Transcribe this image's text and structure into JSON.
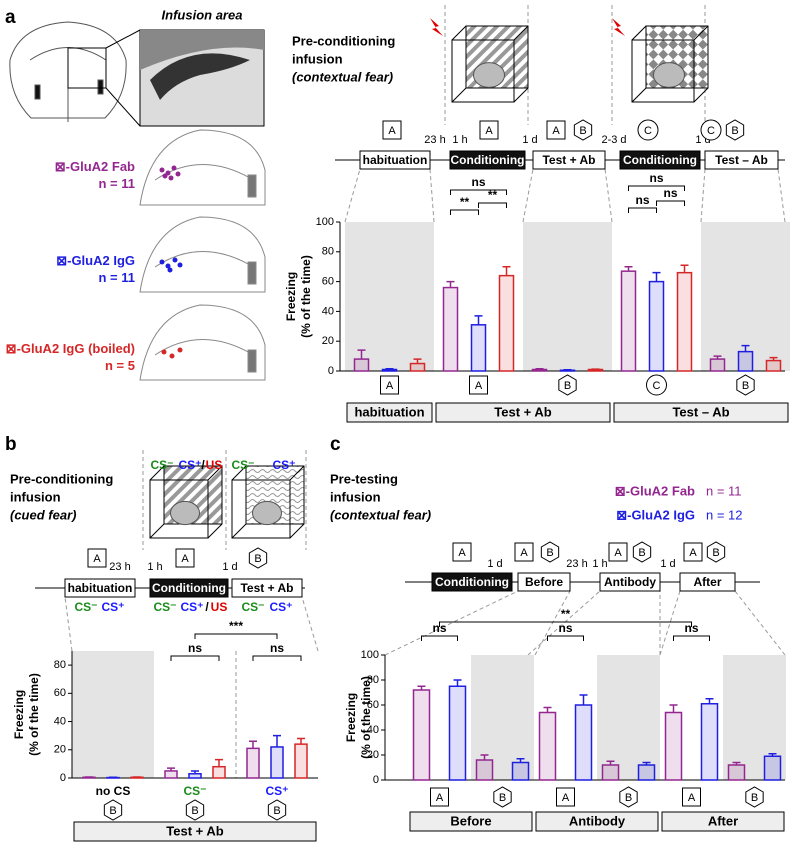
{
  "panels": {
    "a": {
      "letter": "a",
      "image_label": "Infusion area",
      "title": [
        "Pre-conditioning",
        "infusion",
        "(contextual fear)"
      ],
      "timeline": {
        "stages": [
          "habituation",
          "Conditioning",
          "Test + Ab",
          "Conditioning",
          "Test – Ab"
        ],
        "intervals": [
          "23 h",
          "1 h",
          "1 d",
          "2-3 d",
          "1 d"
        ],
        "contexts": [
          "A",
          "A",
          "A",
          "B",
          "C",
          "C",
          "B"
        ]
      }
    },
    "b": {
      "letter": "b",
      "title": [
        "Pre-conditioning",
        "infusion",
        "(cued fear)"
      ],
      "timeline": {
        "stages": [
          "habituation",
          "Conditioning",
          "Test + Ab"
        ],
        "intervals": [
          "23 h",
          "1 h",
          "1 d"
        ],
        "contexts": [
          "A",
          "A",
          "B"
        ]
      },
      "cues_top": [
        {
          "text": "CS⁻",
          "color": "#1a8c1a"
        },
        {
          "text": "CS⁺",
          "color": "#1a1aff"
        },
        {
          "text": "/",
          "color": "#000000"
        },
        {
          "text": "US",
          "color": "#e00000"
        },
        {
          "text": "CS⁻",
          "color": "#1a8c1a"
        },
        {
          "text": "CS⁺",
          "color": "#1a1aff"
        }
      ],
      "cues_bottom": [
        {
          "text": "CS⁻",
          "color": "#1a8c1a"
        },
        {
          "text": "CS⁺",
          "color": "#1a1aff"
        },
        {
          "text": "CS⁻",
          "color": "#1a8c1a"
        },
        {
          "text": "CS⁺",
          "color": "#1a1aff"
        },
        {
          "text": "/",
          "color": "#000000"
        },
        {
          "text": "US",
          "color": "#e00000"
        },
        {
          "text": "CS⁻",
          "color": "#1a8c1a"
        },
        {
          "text": "CS⁺",
          "color": "#1a1aff"
        }
      ]
    },
    "c": {
      "letter": "c",
      "title": [
        "Pre-testing",
        "infusion",
        "(contextual fear)"
      ],
      "timeline": {
        "stages": [
          "Conditioning",
          "Before",
          "Antibody",
          "After"
        ],
        "intervals": [
          "1 d",
          "23 h",
          "1 h",
          "1 d"
        ],
        "contexts": [
          "A",
          "A",
          "B",
          "A",
          "B",
          "A",
          "B"
        ]
      }
    }
  },
  "chart_data": [
    {
      "type": "bar",
      "ylabel": [
        "Freezing",
        "(% of the time)"
      ],
      "categories": [
        "A",
        "A",
        "B",
        "C",
        "B"
      ],
      "group_labels": [
        "habituation",
        "Test + Ab",
        "Test – Ab"
      ],
      "series": [
        {
          "name": "⊠-GluA2 Fab",
          "n_label": "n = 11",
          "color": "#93278f",
          "values": [
            8,
            56,
            1,
            67,
            8
          ],
          "errors": [
            6,
            4,
            0.5,
            3,
            2
          ]
        },
        {
          "name": "⊠-GluA2 IgG",
          "n_label": "n = 11",
          "color": "#1f1fe0",
          "values": [
            1,
            31,
            0.5,
            60,
            13
          ],
          "errors": [
            0.5,
            6,
            0.3,
            6,
            4
          ]
        },
        {
          "name": "⊠-GluA2 IgG (boiled)",
          "n_label": "n = 5",
          "color": "#d62728",
          "values": [
            5,
            64,
            1,
            66,
            7
          ],
          "errors": [
            3,
            6,
            0.3,
            5,
            2
          ]
        }
      ],
      "annotations": [
        "**",
        "**",
        "ns",
        "ns",
        "ns",
        "ns"
      ],
      "ylim": [
        0,
        100
      ],
      "yticks": [
        0,
        20,
        40,
        60,
        80,
        100
      ]
    },
    {
      "type": "bar",
      "ylabel": [
        "Freezing",
        "(% of the time)"
      ],
      "categories": [
        "no CS",
        "CS⁻",
        "CS⁺"
      ],
      "category_colors": [
        "#000000",
        "#1a8c1a",
        "#1a1aff"
      ],
      "contexts": [
        "B",
        "B",
        "B"
      ],
      "group_labels": [
        "Test + Ab"
      ],
      "series": [
        {
          "color": "#93278f",
          "values": [
            0.5,
            5,
            21
          ],
          "errors": [
            0.2,
            2,
            5
          ]
        },
        {
          "color": "#1f1fe0",
          "values": [
            0.3,
            3,
            22
          ],
          "errors": [
            0.2,
            2,
            8
          ]
        },
        {
          "color": "#d62728",
          "values": [
            0.5,
            8,
            24
          ],
          "errors": [
            0.2,
            5,
            4
          ]
        }
      ],
      "annotations": [
        "ns",
        "ns",
        "***"
      ],
      "ylim": [
        0,
        90
      ],
      "yticks": [
        0,
        20,
        40,
        60,
        80
      ]
    },
    {
      "type": "bar",
      "ylabel": [
        "Freezing",
        "(% of the time)"
      ],
      "categories": [
        "A",
        "B",
        "A",
        "B",
        "A",
        "B"
      ],
      "group_labels": [
        "Before",
        "Antibody",
        "After"
      ],
      "series": [
        {
          "name": "⊠-GluA2 Fab",
          "n_label": "n = 11",
          "color": "#93278f",
          "values": [
            72,
            16,
            54,
            12,
            54,
            12
          ],
          "errors": [
            3,
            4,
            4,
            3,
            6,
            2
          ]
        },
        {
          "name": "⊠-GluA2 IgG",
          "n_label": "n = 12",
          "color": "#1f1fe0",
          "values": [
            75,
            14,
            60,
            12,
            61,
            19
          ],
          "errors": [
            5,
            3,
            8,
            2,
            4,
            2
          ]
        }
      ],
      "annotations": [
        "ns",
        "ns",
        "ns",
        "**"
      ],
      "ylim": [
        0,
        100
      ],
      "yticks": [
        0,
        20,
        40,
        60,
        80,
        100
      ]
    }
  ]
}
